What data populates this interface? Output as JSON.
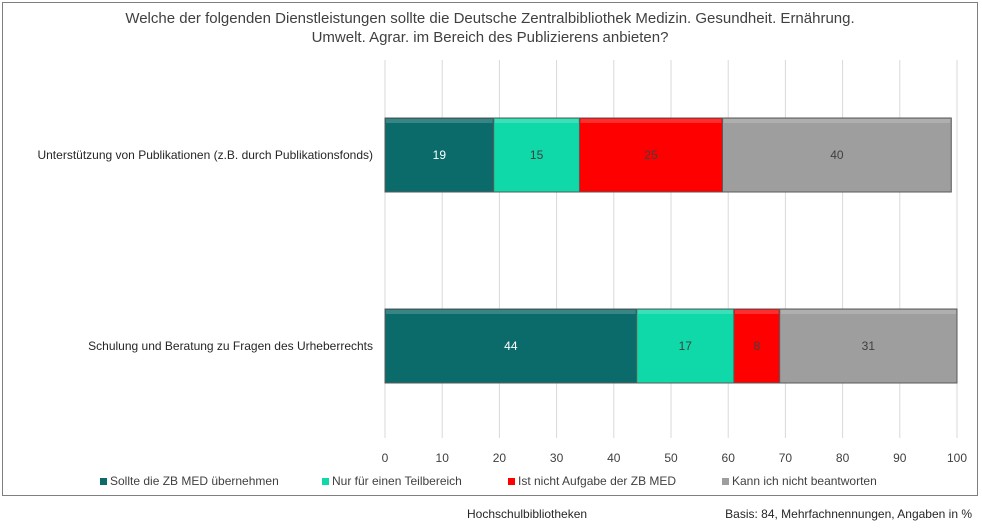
{
  "chart_data": {
    "type": "bar",
    "orientation": "horizontal",
    "stacked": true,
    "title_line1": "Welche der folgenden Dienstleistungen sollte die Deutsche Zentralbibliothek Medizin. Gesundheit. Ernährung.",
    "title_line2": "Umwelt. Agrar. im Bereich des Publizierens anbieten?",
    "categories": [
      "Unterstützung von Publikationen (z.B. durch Publikationsfonds)",
      "Schulung und Beratung zu Fragen des Urheberrechts"
    ],
    "series": [
      {
        "name": "Sollte die ZB MED übernehmen",
        "color": "#0b6b6b",
        "label_color": "#ffffff",
        "values": [
          19,
          44
        ]
      },
      {
        "name": "Nur für einen Teilbereich",
        "color": "#0fd9a8",
        "label_color": "#404040",
        "values": [
          15,
          17
        ]
      },
      {
        "name": "Ist nicht Aufgabe der ZB MED",
        "color": "#ff0000",
        "label_color": "#404040",
        "values": [
          25,
          8
        ]
      },
      {
        "name": "Kann ich nicht beantworten",
        "color": "#9e9e9e",
        "label_color": "#404040",
        "values": [
          40,
          31
        ]
      }
    ],
    "xlim": [
      0,
      100
    ],
    "xticks": [
      0,
      10,
      20,
      30,
      40,
      50,
      60,
      70,
      80,
      90,
      100
    ],
    "grid": true,
    "legend_position": "bottom"
  },
  "footer": {
    "left": "Hochschulbibliotheken",
    "right": "Basis: 84, Mehrfachnennungen, Angaben in %"
  }
}
